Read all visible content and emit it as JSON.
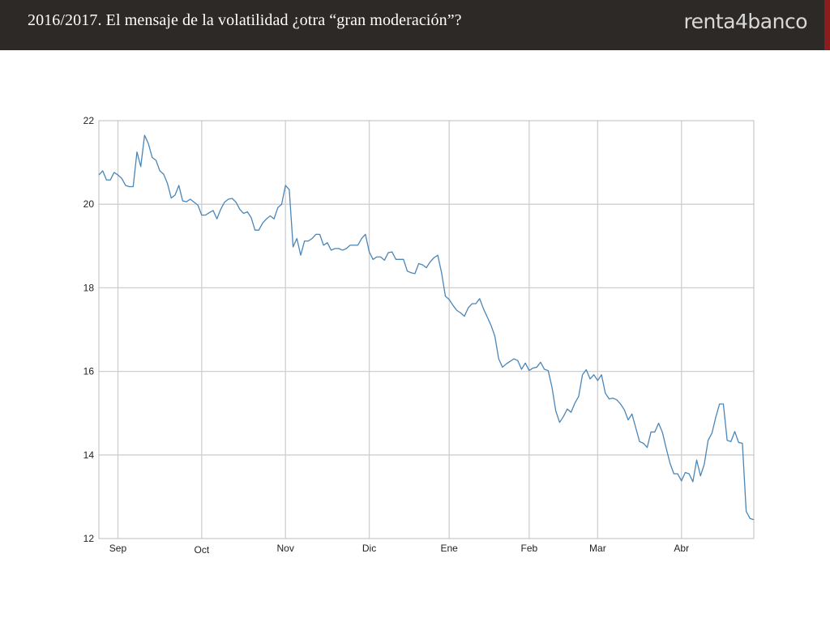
{
  "slide": {
    "title": "2016/2017.   El mensaje de la volatilidad ¿otra “gran moderación”?",
    "brand": "renta4banco"
  },
  "colors": {
    "header_bg": "#2c2926",
    "accent": "#8d1c1c",
    "line": "#4a86b8",
    "grid": "#cfcfcf"
  },
  "chart_data": {
    "type": "line",
    "title": "",
    "xlabel": "",
    "ylabel": "",
    "ylim": [
      12,
      22
    ],
    "yticks": [
      12,
      14,
      16,
      18,
      20,
      22
    ],
    "x_tick_labels": [
      "Sep",
      "Oct",
      "Nov",
      "Dic",
      "Ene",
      "Feb",
      "Mar",
      "Abr"
    ],
    "grid": true,
    "legend": "none",
    "series": [
      {
        "values": [
          20.7,
          20.8,
          20.58,
          20.58,
          20.76,
          20.7,
          20.62,
          20.45,
          20.42,
          20.42,
          21.25,
          20.9,
          21.65,
          21.45,
          21.12,
          21.05,
          20.8,
          20.72,
          20.5,
          20.15,
          20.22,
          20.45,
          20.08,
          20.06,
          20.12,
          20.05,
          19.98,
          19.74,
          19.74,
          19.8,
          19.85,
          19.65,
          19.88,
          20.05,
          20.12,
          20.14,
          20.05,
          19.88,
          19.78,
          19.82,
          19.68,
          19.38,
          19.38,
          19.55,
          19.65,
          19.72,
          19.65,
          19.92,
          20.0,
          20.45,
          20.35,
          18.98,
          19.18,
          18.78,
          19.12,
          19.12,
          19.18,
          19.28,
          19.28,
          19.02,
          19.08,
          18.9,
          18.94,
          18.94,
          18.9,
          18.94,
          19.02,
          19.02,
          19.02,
          19.18,
          19.28,
          18.86,
          18.68,
          18.74,
          18.74,
          18.66,
          18.84,
          18.86,
          18.68,
          18.68,
          18.68,
          18.4,
          18.36,
          18.34,
          18.58,
          18.55,
          18.48,
          18.62,
          18.72,
          18.78,
          18.36,
          17.8,
          17.72,
          17.58,
          17.46,
          17.4,
          17.32,
          17.52,
          17.62,
          17.62,
          17.74,
          17.5,
          17.3,
          17.1,
          16.84,
          16.3,
          16.1,
          16.18,
          16.24,
          16.3,
          16.26,
          16.05,
          16.2,
          16.02,
          16.08,
          16.1,
          16.22,
          16.05,
          16.02,
          15.62,
          15.05,
          14.78,
          14.92,
          15.1,
          15.02,
          15.24,
          15.4,
          15.92,
          16.04,
          15.82,
          15.92,
          15.78,
          15.92,
          15.48,
          15.34,
          15.36,
          15.32,
          15.22,
          15.08,
          14.84,
          14.98,
          14.65,
          14.32,
          14.28,
          14.18,
          14.55,
          14.55,
          14.76,
          14.54,
          14.16,
          13.8,
          13.55,
          13.55,
          13.38,
          13.58,
          13.55,
          13.36,
          13.88,
          13.5,
          13.78,
          14.35,
          14.52,
          14.9,
          15.22,
          15.22,
          14.35,
          14.32,
          14.56,
          14.3,
          14.28,
          12.65,
          12.48,
          12.45
        ]
      }
    ]
  }
}
